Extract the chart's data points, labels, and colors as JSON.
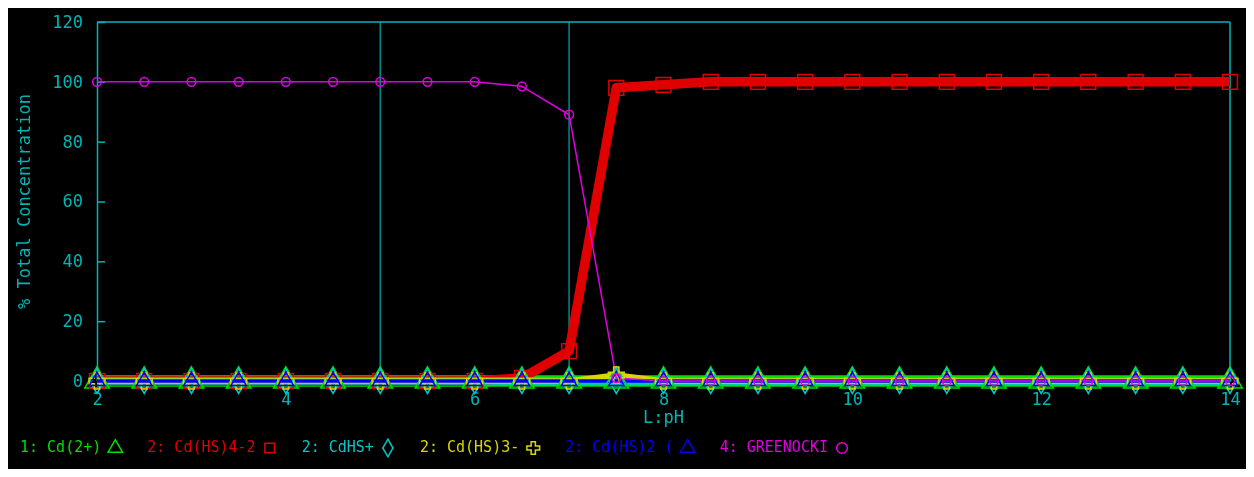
{
  "chart_data": {
    "type": "line",
    "xlabel": "L:pH",
    "ylabel": "% Total Concentration",
    "x": [
      2,
      2.5,
      3,
      3.5,
      4,
      4.5,
      5,
      5.5,
      6,
      6.5,
      7,
      7.5,
      8,
      8.5,
      9,
      9.5,
      10,
      10.5,
      11,
      11.5,
      12,
      12.5,
      13,
      13.5,
      14
    ],
    "xlim": [
      2,
      14
    ],
    "xticks": [
      2,
      4,
      6,
      8,
      10,
      12,
      14
    ],
    "ylim": [
      0,
      120
    ],
    "yticks": [
      0,
      20,
      40,
      60,
      80,
      100,
      120
    ],
    "grid": false,
    "legend": "bottom",
    "ref_lines": [
      {
        "axis": "x",
        "value": 5,
        "color": "#008b8b"
      },
      {
        "axis": "x",
        "value": 7,
        "color": "#008b8b"
      }
    ],
    "series": [
      {
        "name": "1: Cd(2+)",
        "color": "#00e000",
        "marker": "triangle",
        "values": [
          0,
          0,
          0,
          0,
          0,
          0,
          0,
          0,
          0,
          0,
          0,
          0,
          0,
          0,
          0,
          0,
          0,
          0,
          0,
          0,
          0,
          0,
          0,
          0,
          0
        ]
      },
      {
        "name": "2: Cd(HS)4-2",
        "color": "#e00000",
        "marker": "square",
        "values": [
          0,
          0,
          0,
          0,
          0,
          0,
          0,
          0,
          0,
          1,
          10,
          98,
          99,
          100,
          100,
          100,
          100,
          100,
          100,
          100,
          100,
          100,
          100,
          100,
          100
        ]
      },
      {
        "name": "2: CdHS+",
        "color": "#00c8c8",
        "marker": "diamond",
        "values": [
          0,
          0,
          0,
          0,
          0,
          0,
          0,
          0,
          0,
          0,
          0,
          0,
          0,
          0,
          0,
          0,
          0,
          0,
          0,
          0,
          0,
          0,
          0,
          0,
          0
        ]
      },
      {
        "name": "2: Cd(HS)3-",
        "color": "#d8d800",
        "marker": "cross",
        "values": [
          0,
          0,
          0,
          0,
          0,
          0,
          0,
          0,
          0,
          0,
          0,
          2,
          0,
          0,
          0,
          0,
          0,
          0,
          0,
          0,
          0,
          0,
          0,
          0,
          0
        ]
      },
      {
        "name": "2: Cd(HS)2 (",
        "color": "#0000ff",
        "marker": "triangle",
        "values": [
          0,
          0,
          0,
          0,
          0,
          0,
          0,
          0,
          0,
          0,
          0,
          0,
          0,
          0,
          0,
          0,
          0,
          0,
          0,
          0,
          0,
          0,
          0,
          0,
          0
        ]
      },
      {
        "name": "4: GREENOCKI",
        "color": "#e000e0",
        "marker": "circle",
        "values": [
          100,
          100,
          100,
          100,
          100,
          100,
          100,
          100,
          100,
          98.5,
          89,
          1,
          0,
          0,
          0,
          0,
          0,
          0,
          0,
          0,
          0,
          0,
          0,
          0,
          0
        ]
      }
    ]
  }
}
